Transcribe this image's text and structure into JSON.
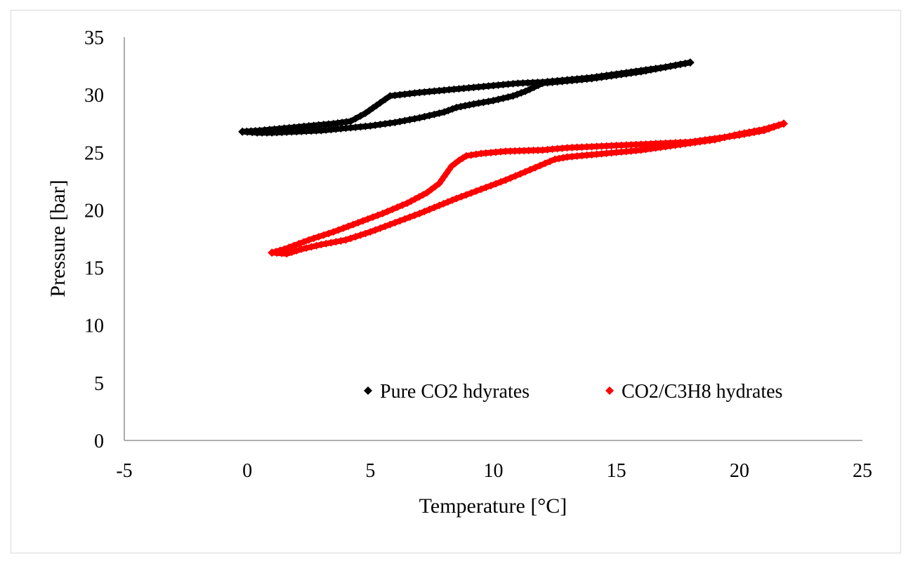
{
  "chart_data": {
    "type": "scatter",
    "title": "",
    "xlabel": "Temperature [°C]",
    "ylabel": "Pressure [bar]",
    "xlim": [
      -5,
      25
    ],
    "ylim": [
      0,
      35
    ],
    "xticks": [
      -5,
      0,
      5,
      10,
      15,
      20,
      25
    ],
    "yticks": [
      0,
      5,
      10,
      15,
      20,
      25,
      30,
      35
    ],
    "grid": false,
    "legend_position": "bottom-right",
    "series": [
      {
        "name": "Pure CO2 hdyrates",
        "color": "#000000",
        "marker": "diamond",
        "loops": [
          {
            "x": [
              -0.2,
              0.5,
              1.5,
              2.5,
              3.5,
              4.2,
              4.8,
              5.4,
              5.8,
              6.2,
              7.0,
              8.0,
              9.0,
              10.0,
              11.0,
              12.0,
              13.0,
              14.0,
              15.0,
              16.0,
              17.0,
              18.0
            ],
            "y": [
              26.8,
              26.9,
              27.1,
              27.3,
              27.5,
              27.7,
              28.4,
              29.3,
              29.9,
              30.0,
              30.2,
              30.4,
              30.6,
              30.8,
              31.0,
              31.1,
              31.3,
              31.5,
              31.8,
              32.1,
              32.4,
              32.8
            ]
          },
          {
            "x": [
              18.0,
              17.0,
              16.0,
              15.0,
              14.0,
              13.0,
              12.0,
              11.3,
              10.8,
              10.0,
              9.2,
              8.5,
              8.0,
              7.0,
              6.0,
              5.0,
              4.0,
              3.0,
              2.0,
              1.0,
              0.4,
              -0.2
            ],
            "y": [
              32.8,
              32.4,
              32.0,
              31.7,
              31.4,
              31.2,
              31.0,
              30.3,
              29.9,
              29.5,
              29.2,
              28.9,
              28.5,
              28.0,
              27.6,
              27.3,
              27.1,
              26.9,
              26.8,
              26.7,
              26.7,
              26.8
            ]
          }
        ]
      },
      {
        "name": "CO2/C3H8 hydrates",
        "color": "#ff0000",
        "marker": "diamond",
        "loops": [
          {
            "x": [
              1.0,
              1.5,
              2.5,
              3.5,
              4.5,
              5.5,
              6.5,
              7.3,
              7.8,
              8.1,
              8.3,
              8.6,
              8.9,
              9.5,
              10.5,
              12.0,
              13.0,
              14.0,
              15.0,
              16.0,
              17.0,
              18.0,
              19.0,
              20.0,
              21.0,
              21.8
            ],
            "y": [
              16.3,
              16.6,
              17.4,
              18.1,
              18.9,
              19.7,
              20.6,
              21.5,
              22.3,
              23.2,
              23.8,
              24.3,
              24.7,
              24.9,
              25.1,
              25.2,
              25.4,
              25.5,
              25.6,
              25.7,
              25.8,
              25.9,
              26.2,
              26.5,
              26.9,
              27.5
            ]
          },
          {
            "x": [
              21.8,
              21.0,
              20.0,
              19.0,
              18.0,
              17.0,
              16.0,
              15.0,
              14.0,
              13.0,
              12.5,
              11.5,
              10.5,
              9.5,
              8.5,
              7.8,
              7.0,
              6.0,
              5.0,
              4.0,
              3.0,
              2.2,
              1.6,
              1.0
            ],
            "y": [
              27.5,
              27.0,
              26.6,
              26.1,
              25.8,
              25.5,
              25.2,
              25.0,
              24.8,
              24.6,
              24.4,
              23.5,
              22.6,
              21.8,
              21.0,
              20.4,
              19.7,
              18.9,
              18.1,
              17.4,
              17.0,
              16.6,
              16.2,
              16.3
            ]
          }
        ]
      }
    ]
  }
}
